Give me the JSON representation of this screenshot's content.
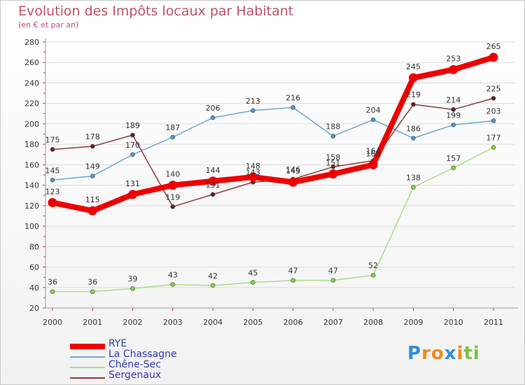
{
  "header": {
    "title": "Evolution des Impôts locaux par Habitant",
    "subtitle": "(en € et par an)"
  },
  "chart_data": {
    "type": "line",
    "title": "Evolution des Impôts locaux par Habitant",
    "subtitle": "(en € et par an)",
    "xlabel": "",
    "ylabel": "",
    "x": [
      "2000",
      "2001",
      "2002",
      "2003",
      "2004",
      "2005",
      "2006",
      "2007",
      "2008",
      "2009",
      "2010",
      "2011"
    ],
    "ylim": [
      20,
      280
    ],
    "yticks": [
      20,
      40,
      60,
      80,
      100,
      120,
      140,
      160,
      180,
      200,
      220,
      240,
      260,
      280
    ],
    "grid": "horizontal",
    "legend": "bottom-left",
    "series": [
      {
        "name": "RYE",
        "values": [
          123,
          115,
          131,
          140,
          144,
          148,
          143,
          151,
          160,
          245,
          253,
          265
        ],
        "color": "#ee0000",
        "marker": "#ee0000",
        "width": 8,
        "labels": [
          "123",
          "115",
          "131",
          "140",
          "144",
          "148",
          "143",
          "151",
          "160",
          "245",
          "253",
          "265"
        ]
      },
      {
        "name": "La Chassagne",
        "values": [
          145,
          149,
          170,
          187,
          206,
          213,
          216,
          188,
          204,
          186,
          199,
          203
        ],
        "color": "#6fa7d3",
        "marker": "#4d94d0",
        "width": 1.5,
        "labels": [
          "145",
          "149",
          "170",
          "187",
          "206",
          "213",
          "216",
          "188",
          "204",
          "186",
          "199",
          "203"
        ]
      },
      {
        "name": "Chêne-Sec",
        "values": [
          36,
          36,
          39,
          43,
          42,
          45,
          47,
          47,
          52,
          138,
          157,
          177
        ],
        "color": "#a6e08a",
        "marker": "#7fd23f",
        "width": 1.5,
        "labels": [
          "36",
          "36",
          "39",
          "43",
          "42",
          "45",
          "47",
          "47",
          "52",
          "138",
          "157",
          "177"
        ]
      },
      {
        "name": "Sergenaux",
        "values": [
          175,
          178,
          189,
          119,
          131,
          143,
          146,
          158,
          164,
          219,
          214,
          225
        ],
        "color": "#8e3b3b",
        "marker": "#6b1a1a",
        "width": 1.5,
        "labels": [
          "175",
          "178",
          "189",
          "119",
          "131",
          "143",
          "146",
          "158",
          "164",
          "219",
          "214",
          "225"
        ]
      }
    ]
  },
  "legend": {
    "items": [
      {
        "label": "RYE",
        "color": "#ee0000"
      },
      {
        "label": "La Chassagne",
        "color": "#6fa7d3"
      },
      {
        "label": "Chêne-Sec",
        "color": "#a6e08a"
      },
      {
        "label": "Sergenaux",
        "color": "#8e3b3b"
      }
    ],
    "text_color": "#2f3ab0"
  },
  "logo": {
    "letters": [
      "P",
      "r",
      "o",
      "x",
      "i",
      "t",
      "i"
    ],
    "colors": [
      "#2f8fd8",
      "#f08a1c",
      "#f08a1c",
      "#2f8fd8",
      "#f08a1c",
      "#7cc242",
      "#7cc242"
    ]
  }
}
